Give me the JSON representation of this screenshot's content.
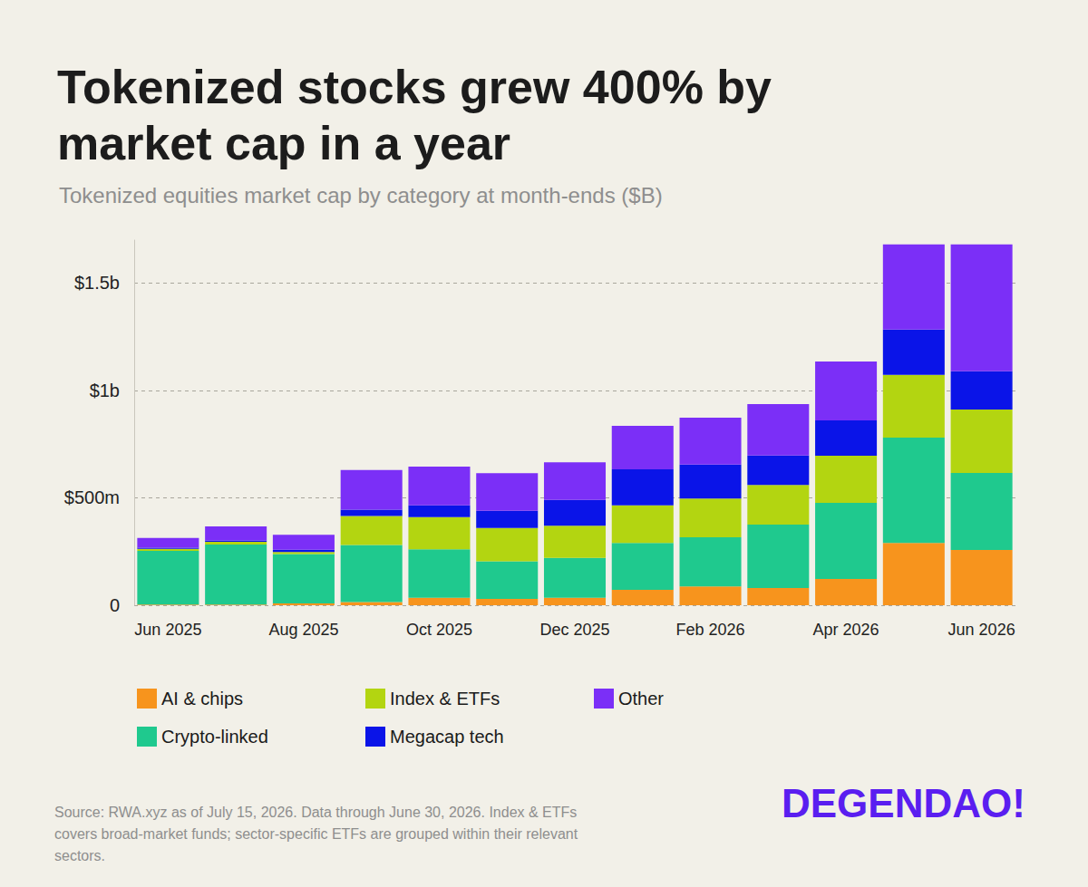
{
  "chart_data": {
    "type": "bar",
    "title": "Tokenized stocks grew 400% by market cap in a year",
    "subtitle": "Tokenized equities market cap by category at month-ends ($B)",
    "annotations": [
      "Source: RWA.xyz as of July 15, 2026. Data through June 30, 2026. Index & ETFs covers broad-market funds; sector-specific ETFs are grouped within their relevant sectors.",
      "DEGENDAO!"
    ],
    "categories": [
      "Jun 2025",
      null,
      "Aug 2025",
      null,
      "Oct 2025",
      null,
      "Dec 2025",
      null,
      "Feb 2026",
      null,
      "Apr 2026",
      null,
      "Jun 2026"
    ],
    "series": [
      {
        "name": "AI & chips",
        "color": "#f7941d",
        "values": [
          0.003,
          0.003,
          0.008,
          0.015,
          0.035,
          0.03,
          0.035,
          0.072,
          0.088,
          0.08,
          0.122,
          0.29,
          0.257
        ]
      },
      {
        "name": "Crypto-linked",
        "color": "#1fc98e",
        "values": [
          0.25,
          0.28,
          0.23,
          0.265,
          0.225,
          0.175,
          0.185,
          0.218,
          0.228,
          0.295,
          0.355,
          0.49,
          0.359
        ]
      },
      {
        "name": "Index & ETFs",
        "color": "#b3d511",
        "values": [
          0.01,
          0.012,
          0.01,
          0.135,
          0.15,
          0.155,
          0.15,
          0.175,
          0.181,
          0.185,
          0.219,
          0.292,
          0.295
        ]
      },
      {
        "name": "Megacap tech",
        "color": "#0a14e8",
        "values": [
          0.005,
          0.007,
          0.01,
          0.03,
          0.055,
          0.08,
          0.12,
          0.168,
          0.158,
          0.137,
          0.165,
          0.211,
          0.178
        ]
      },
      {
        "name": "Other",
        "color": "#7b2ff7",
        "values": [
          0.045,
          0.065,
          0.07,
          0.185,
          0.18,
          0.175,
          0.175,
          0.202,
          0.218,
          0.24,
          0.274,
          0.397,
          0.591
        ]
      }
    ],
    "ylim": [
      0,
      1.7
    ],
    "yticks": [
      0,
      {
        "value": 0.5,
        "label": "$500m"
      },
      {
        "value": 1,
        "label": "$1b"
      },
      {
        "value": 1.5,
        "label": "$1.5b"
      }
    ],
    "stacked": true,
    "grid": true,
    "legend": "bottom"
  }
}
